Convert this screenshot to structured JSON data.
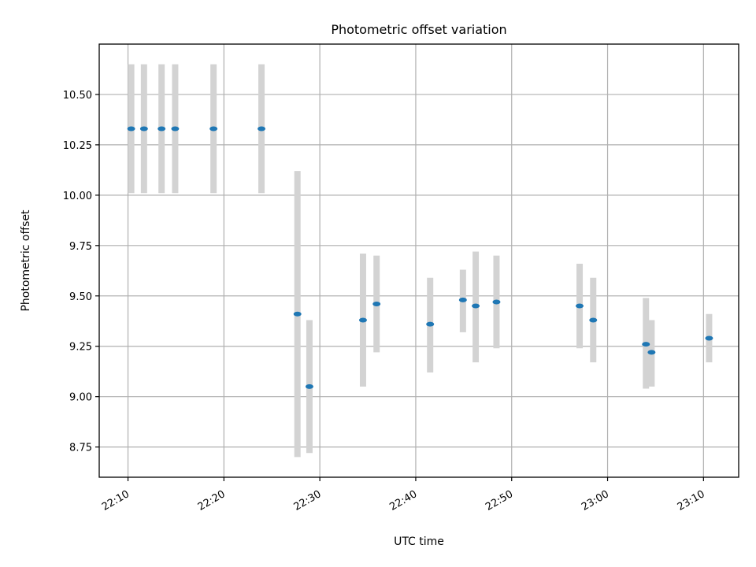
{
  "chart_data": {
    "type": "scatter",
    "title": "Photometric offset variation",
    "xlabel": "UTC time",
    "ylabel": "Photometric offset",
    "x_ticks": [
      "22:10",
      "22:20",
      "22:30",
      "22:40",
      "22:50",
      "23:00",
      "23:10"
    ],
    "y_ticks": [
      "8.75",
      "9.00",
      "9.25",
      "9.50",
      "9.75",
      "10.00",
      "10.25",
      "10.50"
    ],
    "xlim": [
      "22:07:00",
      "23:13:40"
    ],
    "ylim": [
      8.6,
      10.75
    ],
    "grid": true,
    "marker_color": "#1f77b4",
    "errorbar_color": "#d3d3d3",
    "series": [
      {
        "points": [
          {
            "x": "22:10:20",
            "y": 10.33,
            "ylow": 10.01,
            "yhigh": 10.65
          },
          {
            "x": "22:11:40",
            "y": 10.33,
            "ylow": 10.01,
            "yhigh": 10.65
          },
          {
            "x": "22:13:30",
            "y": 10.33,
            "ylow": 10.01,
            "yhigh": 10.65
          },
          {
            "x": "22:14:55",
            "y": 10.33,
            "ylow": 10.01,
            "yhigh": 10.65
          },
          {
            "x": "22:18:55",
            "y": 10.33,
            "ylow": 10.01,
            "yhigh": 10.65
          },
          {
            "x": "22:23:55",
            "y": 10.33,
            "ylow": 10.01,
            "yhigh": 10.65
          },
          {
            "x": "22:27:40",
            "y": 9.41,
            "ylow": 8.7,
            "yhigh": 10.12
          },
          {
            "x": "22:28:55",
            "y": 9.05,
            "ylow": 8.72,
            "yhigh": 9.38
          },
          {
            "x": "22:34:30",
            "y": 9.38,
            "ylow": 9.05,
            "yhigh": 9.71
          },
          {
            "x": "22:35:55",
            "y": 9.46,
            "ylow": 9.22,
            "yhigh": 9.7
          },
          {
            "x": "22:41:30",
            "y": 9.36,
            "ylow": 9.12,
            "yhigh": 9.59
          },
          {
            "x": "22:44:55",
            "y": 9.48,
            "ylow": 9.32,
            "yhigh": 9.63
          },
          {
            "x": "22:46:15",
            "y": 9.45,
            "ylow": 9.17,
            "yhigh": 9.72
          },
          {
            "x": "22:48:25",
            "y": 9.47,
            "ylow": 9.24,
            "yhigh": 9.7
          },
          {
            "x": "22:57:05",
            "y": 9.45,
            "ylow": 9.24,
            "yhigh": 9.66
          },
          {
            "x": "22:58:30",
            "y": 9.38,
            "ylow": 9.17,
            "yhigh": 9.59
          },
          {
            "x": "23:04:00",
            "y": 9.26,
            "ylow": 9.04,
            "yhigh": 9.49
          },
          {
            "x": "23:04:35",
            "y": 9.22,
            "ylow": 9.05,
            "yhigh": 9.38
          },
          {
            "x": "23:10:35",
            "y": 9.29,
            "ylow": 9.17,
            "yhigh": 9.41
          }
        ]
      }
    ]
  }
}
